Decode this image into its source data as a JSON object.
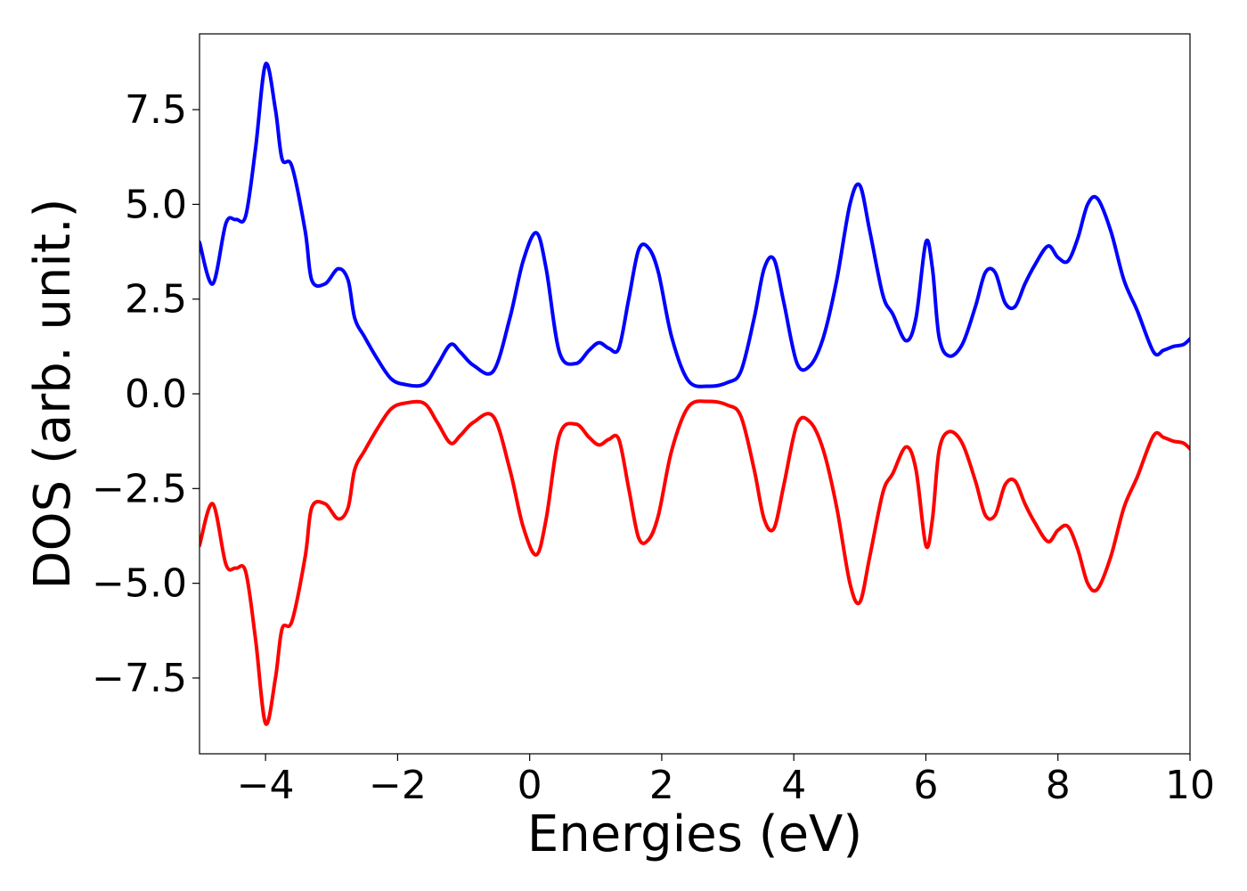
{
  "chart_data": {
    "type": "line",
    "title": "",
    "xlabel": "Energies (eV)",
    "ylabel": "DOS (arb. unit.)",
    "xlim": [
      -5,
      10
    ],
    "ylim": [
      -9.5,
      9.5
    ],
    "xticks": [
      -4,
      -2,
      0,
      2,
      4,
      6,
      8,
      10
    ],
    "xtick_labels": [
      "−4",
      "−2",
      "0",
      "2",
      "4",
      "6",
      "8",
      "10"
    ],
    "yticks": [
      7.5,
      5.0,
      2.5,
      0.0,
      -2.5,
      -5.0,
      -7.5
    ],
    "ytick_labels": [
      "7.5",
      "5.0",
      "2.5",
      "0.0",
      "−2.5",
      "−5.0",
      "−7.5"
    ],
    "grid": false,
    "legend": "none",
    "series": [
      {
        "color": "#0000ff",
        "x": [
          -5.0,
          -4.8,
          -4.6,
          -4.45,
          -4.3,
          -4.15,
          -4.0,
          -3.85,
          -3.75,
          -3.6,
          -3.4,
          -3.3,
          -3.1,
          -2.9,
          -2.75,
          -2.65,
          -2.5,
          -2.3,
          -2.1,
          -1.9,
          -1.6,
          -1.4,
          -1.2,
          -1.05,
          -0.85,
          -0.55,
          -0.3,
          -0.1,
          0.1,
          0.25,
          0.45,
          0.7,
          0.9,
          1.05,
          1.2,
          1.35,
          1.5,
          1.65,
          1.8,
          1.95,
          2.15,
          2.4,
          2.7,
          3.0,
          3.2,
          3.4,
          3.55,
          3.7,
          3.85,
          4.05,
          4.25,
          4.45,
          4.65,
          4.85,
          5.0,
          5.15,
          5.35,
          5.5,
          5.7,
          5.85,
          6.0,
          6.1,
          6.2,
          6.35,
          6.55,
          6.75,
          6.9,
          7.05,
          7.2,
          7.35,
          7.5,
          7.65,
          7.85,
          8.0,
          8.15,
          8.3,
          8.45,
          8.6,
          8.8,
          9.0,
          9.2,
          9.45,
          9.6,
          9.75,
          9.9,
          10.0
        ],
        "y": [
          4.0,
          2.9,
          4.5,
          4.6,
          4.7,
          6.5,
          8.7,
          7.5,
          6.2,
          6.0,
          4.3,
          3.0,
          2.9,
          3.3,
          3.0,
          2.0,
          1.5,
          0.9,
          0.4,
          0.25,
          0.25,
          0.75,
          1.3,
          1.1,
          0.75,
          0.6,
          2.0,
          3.5,
          4.25,
          3.3,
          1.1,
          0.8,
          1.15,
          1.35,
          1.2,
          1.2,
          2.5,
          3.8,
          3.85,
          3.2,
          1.5,
          0.35,
          0.2,
          0.3,
          0.6,
          2.0,
          3.3,
          3.55,
          2.4,
          0.8,
          0.75,
          1.5,
          3.0,
          5.0,
          5.5,
          4.3,
          2.6,
          2.1,
          1.4,
          2.0,
          4.0,
          3.3,
          1.5,
          1.0,
          1.3,
          2.3,
          3.2,
          3.2,
          2.4,
          2.3,
          2.9,
          3.4,
          3.9,
          3.6,
          3.5,
          4.1,
          5.0,
          5.15,
          4.3,
          3.0,
          2.2,
          1.1,
          1.15,
          1.25,
          1.3,
          1.45
        ]
      },
      {
        "color": "#ff0000",
        "x": [
          -5.0,
          -4.8,
          -4.6,
          -4.45,
          -4.3,
          -4.15,
          -4.0,
          -3.85,
          -3.75,
          -3.6,
          -3.4,
          -3.3,
          -3.1,
          -2.9,
          -2.75,
          -2.65,
          -2.5,
          -2.3,
          -2.1,
          -1.9,
          -1.6,
          -1.4,
          -1.2,
          -1.05,
          -0.85,
          -0.55,
          -0.3,
          -0.1,
          0.1,
          0.25,
          0.45,
          0.7,
          0.9,
          1.05,
          1.2,
          1.35,
          1.5,
          1.65,
          1.8,
          1.95,
          2.15,
          2.4,
          2.7,
          3.0,
          3.2,
          3.4,
          3.55,
          3.7,
          3.85,
          4.05,
          4.25,
          4.45,
          4.65,
          4.85,
          5.0,
          5.15,
          5.35,
          5.5,
          5.7,
          5.85,
          6.0,
          6.1,
          6.2,
          6.35,
          6.55,
          6.75,
          6.9,
          7.05,
          7.2,
          7.35,
          7.5,
          7.65,
          7.85,
          8.0,
          8.15,
          8.3,
          8.45,
          8.6,
          8.8,
          9.0,
          9.2,
          9.45,
          9.6,
          9.75,
          9.9,
          10.0
        ],
        "y": [
          -4.0,
          -2.9,
          -4.5,
          -4.6,
          -4.7,
          -6.5,
          -8.7,
          -7.5,
          -6.2,
          -6.0,
          -4.3,
          -3.0,
          -2.9,
          -3.3,
          -3.0,
          -2.0,
          -1.5,
          -0.9,
          -0.4,
          -0.25,
          -0.25,
          -0.75,
          -1.3,
          -1.1,
          -0.75,
          -0.6,
          -2.0,
          -3.5,
          -4.25,
          -3.3,
          -1.1,
          -0.8,
          -1.15,
          -1.35,
          -1.2,
          -1.2,
          -2.5,
          -3.8,
          -3.85,
          -3.2,
          -1.5,
          -0.35,
          -0.2,
          -0.3,
          -0.6,
          -2.0,
          -3.3,
          -3.55,
          -2.4,
          -0.8,
          -0.75,
          -1.5,
          -3.0,
          -5.0,
          -5.5,
          -4.3,
          -2.6,
          -2.1,
          -1.4,
          -2.0,
          -4.0,
          -3.3,
          -1.5,
          -1.0,
          -1.3,
          -2.3,
          -3.2,
          -3.2,
          -2.4,
          -2.3,
          -2.9,
          -3.4,
          -3.9,
          -3.6,
          -3.5,
          -4.1,
          -5.0,
          -5.15,
          -4.3,
          -3.0,
          -2.2,
          -1.1,
          -1.15,
          -1.25,
          -1.3,
          -1.45
        ]
      }
    ]
  }
}
